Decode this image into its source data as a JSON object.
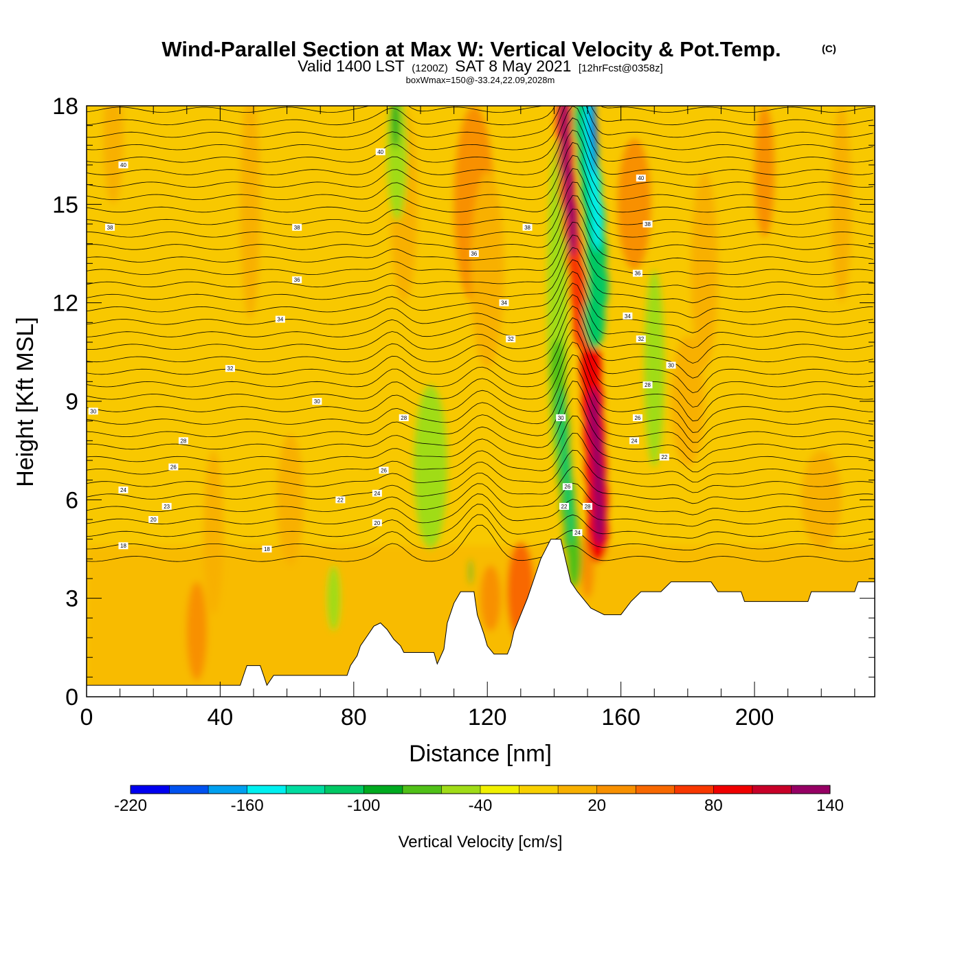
{
  "title": {
    "main": "Wind-Parallel Section at Max W: Vertical Velocity & Pot.Temp.",
    "copyright": "(C)",
    "valid_a": "Valid 1400 LST",
    "valid_b": "(1200Z)",
    "valid_c": "SAT 8 May 2021",
    "valid_d": "[12hrFcst@0358z]",
    "box_info": "boxWmax=150@-33.24,22.09,2028m"
  },
  "chart_data": {
    "type": "heatmap",
    "xlabel": "Distance [nm]",
    "ylabel": "Height [Kft MSL]",
    "xlim": [
      0,
      236
    ],
    "ylim": [
      0,
      18
    ],
    "x_ticks": [
      0,
      40,
      80,
      120,
      160,
      200
    ],
    "y_ticks": [
      0,
      3,
      6,
      9,
      12,
      15,
      18
    ],
    "colorbar": {
      "label": "Vertical Velocity [cm/s]",
      "min": -220,
      "max": 140,
      "step": 20,
      "tick_labels": [
        -220,
        -160,
        -100,
        -40,
        20,
        80,
        140
      ],
      "colors": [
        "#0000f0",
        "#0052f0",
        "#00a0f0",
        "#00f0f0",
        "#00dca0",
        "#00c864",
        "#00aa20",
        "#50c018",
        "#a0dc18",
        "#f0f000",
        "#f8d000",
        "#f8b000",
        "#f89000",
        "#f86800",
        "#f83800",
        "#f00000",
        "#c80028",
        "#960064"
      ]
    },
    "terrain_kft": [
      [
        0,
        0.35
      ],
      [
        3,
        0.35
      ],
      [
        46,
        0.35
      ],
      [
        47,
        0.65
      ],
      [
        48,
        0.95
      ],
      [
        52,
        0.95
      ],
      [
        53,
        0.65
      ],
      [
        54,
        0.35
      ],
      [
        56,
        0.65
      ],
      [
        78,
        0.65
      ],
      [
        79,
        0.95
      ],
      [
        81,
        1.25
      ],
      [
        82,
        1.55
      ],
      [
        84,
        1.85
      ],
      [
        86,
        2.15
      ],
      [
        88,
        2.25
      ],
      [
        90,
        2.05
      ],
      [
        92,
        1.75
      ],
      [
        94,
        1.55
      ],
      [
        95,
        1.35
      ],
      [
        104,
        1.35
      ],
      [
        105,
        1.0
      ],
      [
        107,
        1.45
      ],
      [
        108,
        2.25
      ],
      [
        110,
        2.85
      ],
      [
        112,
        3.2
      ],
      [
        116,
        3.2
      ],
      [
        117,
        2.5
      ],
      [
        119,
        1.9
      ],
      [
        120,
        1.55
      ],
      [
        122,
        1.3
      ],
      [
        126,
        1.3
      ],
      [
        127,
        1.55
      ],
      [
        128,
        2.0
      ],
      [
        130,
        2.5
      ],
      [
        132,
        3.0
      ],
      [
        134,
        3.6
      ],
      [
        136,
        4.2
      ],
      [
        139,
        4.8
      ],
      [
        142,
        4.8
      ],
      [
        145,
        3.5
      ],
      [
        147,
        3.2
      ],
      [
        149,
        2.95
      ],
      [
        151,
        2.7
      ],
      [
        155,
        2.5
      ],
      [
        160,
        2.5
      ],
      [
        163,
        2.9
      ],
      [
        166,
        3.2
      ],
      [
        172,
        3.2
      ],
      [
        175,
        3.5
      ],
      [
        187,
        3.5
      ],
      [
        189,
        3.2
      ],
      [
        196,
        3.2
      ],
      [
        197,
        2.9
      ],
      [
        216,
        2.9
      ],
      [
        217,
        3.2
      ],
      [
        230,
        3.2
      ],
      [
        231,
        3.5
      ],
      [
        236,
        3.5
      ]
    ],
    "contour_labels": [
      {
        "x": 11,
        "y": 16.2,
        "t": "40"
      },
      {
        "x": 88,
        "y": 16.6,
        "t": "40"
      },
      {
        "x": 166,
        "y": 15.8,
        "t": "40"
      },
      {
        "x": 7,
        "y": 14.3,
        "t": "38"
      },
      {
        "x": 63,
        "y": 14.3,
        "t": "38"
      },
      {
        "x": 132,
        "y": 14.3,
        "t": "38"
      },
      {
        "x": 168,
        "y": 14.4,
        "t": "38"
      },
      {
        "x": 116,
        "y": 13.5,
        "t": "36"
      },
      {
        "x": 63,
        "y": 12.7,
        "t": "36"
      },
      {
        "x": 165,
        "y": 12.9,
        "t": "36"
      },
      {
        "x": 125,
        "y": 12.0,
        "t": "34"
      },
      {
        "x": 58,
        "y": 11.5,
        "t": "34"
      },
      {
        "x": 162,
        "y": 11.6,
        "t": "34"
      },
      {
        "x": 127,
        "y": 10.9,
        "t": "32"
      },
      {
        "x": 43,
        "y": 10.0,
        "t": "32"
      },
      {
        "x": 166,
        "y": 10.9,
        "t": "32"
      },
      {
        "x": 2,
        "y": 8.7,
        "t": "30"
      },
      {
        "x": 69,
        "y": 9.0,
        "t": "30"
      },
      {
        "x": 175,
        "y": 10.1,
        "t": "30"
      },
      {
        "x": 95,
        "y": 8.5,
        "t": "28"
      },
      {
        "x": 29,
        "y": 7.8,
        "t": "28"
      },
      {
        "x": 168,
        "y": 9.5,
        "t": "28"
      },
      {
        "x": 26,
        "y": 7.0,
        "t": "26"
      },
      {
        "x": 89,
        "y": 6.9,
        "t": "26"
      },
      {
        "x": 165,
        "y": 8.5,
        "t": "26"
      },
      {
        "x": 11,
        "y": 6.3,
        "t": "24"
      },
      {
        "x": 87,
        "y": 6.2,
        "t": "24"
      },
      {
        "x": 164,
        "y": 7.8,
        "t": "24"
      },
      {
        "x": 24,
        "y": 5.8,
        "t": "23"
      },
      {
        "x": 76,
        "y": 6.0,
        "t": "22"
      },
      {
        "x": 173,
        "y": 7.3,
        "t": "22"
      },
      {
        "x": 20,
        "y": 5.4,
        "t": "20"
      },
      {
        "x": 87,
        "y": 5.3,
        "t": "20"
      },
      {
        "x": 11,
        "y": 4.6,
        "t": "18"
      },
      {
        "x": 54,
        "y": 4.5,
        "t": "18"
      },
      {
        "x": 142,
        "y": 8.5,
        "t": "30"
      },
      {
        "x": 144,
        "y": 6.4,
        "t": "26"
      },
      {
        "x": 143,
        "y": 5.8,
        "t": "22"
      },
      {
        "x": 150,
        "y": 5.8,
        "t": "28"
      },
      {
        "x": 147,
        "y": 5.0,
        "t": "24"
      }
    ]
  }
}
